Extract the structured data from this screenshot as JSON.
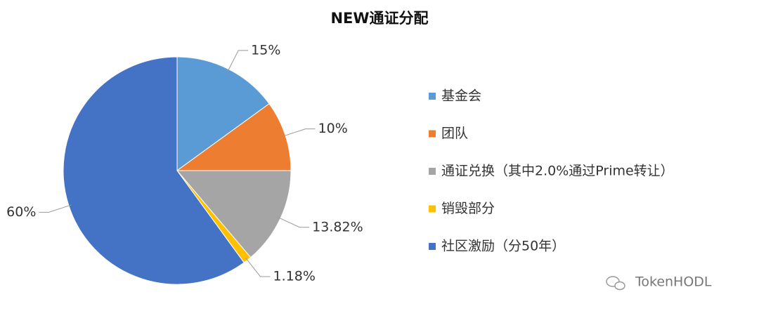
{
  "chart_data": {
    "type": "pie",
    "title": "NEW通证分配",
    "categories": [
      "基金会",
      "团队",
      "通证兑换（其中2.0%通过Prime转让）",
      "销毁部分",
      "社区激励（分50年）"
    ],
    "values": [
      15,
      10,
      13.82,
      1.18,
      60
    ],
    "value_labels": [
      "15%",
      "10%",
      "13.82%",
      "1.18%",
      "60%"
    ],
    "colors": [
      "#5b9bd5",
      "#ed7d31",
      "#a5a5a5",
      "#ffc000",
      "#4472c4"
    ],
    "legend": "right",
    "watermark": "TokenHODL"
  }
}
